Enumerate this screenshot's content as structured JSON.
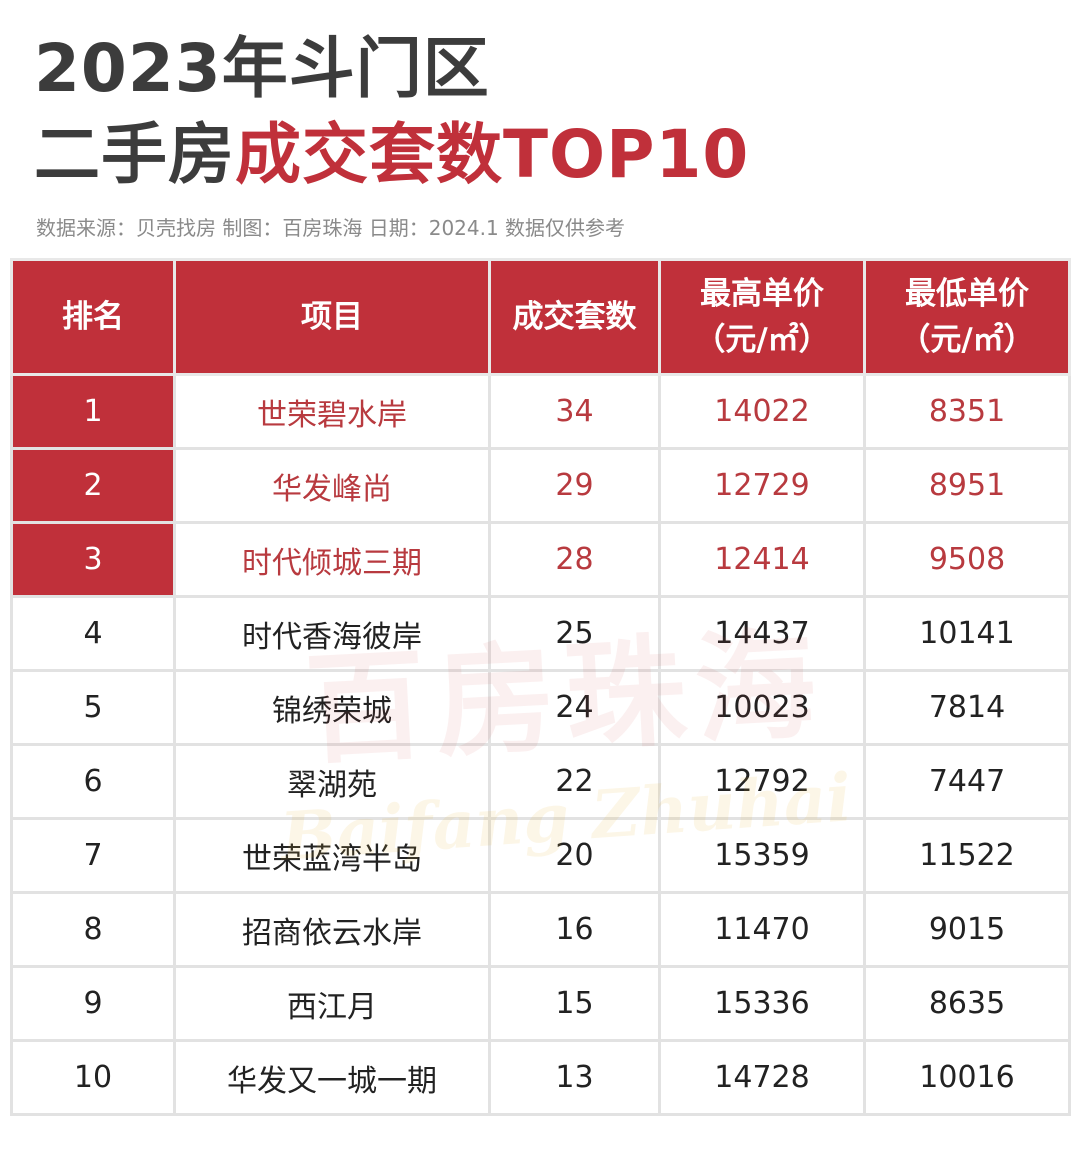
{
  "title": {
    "line1": "2023年斗门区",
    "line2_prefix": "二手房",
    "line2_accent": "成交套数TOP10"
  },
  "source_line": "数据来源：贝壳找房  制图：百房珠海  日期：2024.1  数据仅供参考",
  "watermark": {
    "cn": "百房珠海",
    "en": "Baifang Zhuhai"
  },
  "colors": {
    "accent": "#c0303a",
    "accent_text": "#b83a3f",
    "title_text": "#3c3c3c"
  },
  "table": {
    "headers": [
      {
        "line1": "排名",
        "line2": ""
      },
      {
        "line1": "项目",
        "line2": ""
      },
      {
        "line1": "成交套数",
        "line2": ""
      },
      {
        "line1": "最高单价",
        "line2": "（元/㎡）"
      },
      {
        "line1": "最低单价",
        "line2": "（元/㎡）"
      }
    ],
    "rows": [
      {
        "rank": "1",
        "project": "世荣碧水岸",
        "deals": "34",
        "max_price": "14022",
        "min_price": "8351"
      },
      {
        "rank": "2",
        "project": "华发峰尚",
        "deals": "29",
        "max_price": "12729",
        "min_price": "8951"
      },
      {
        "rank": "3",
        "project": "时代倾城三期",
        "deals": "28",
        "max_price": "12414",
        "min_price": "9508"
      },
      {
        "rank": "4",
        "project": "时代香海彼岸",
        "deals": "25",
        "max_price": "14437",
        "min_price": "10141"
      },
      {
        "rank": "5",
        "project": "锦绣荣城",
        "deals": "24",
        "max_price": "10023",
        "min_price": "7814"
      },
      {
        "rank": "6",
        "project": "翠湖苑",
        "deals": "22",
        "max_price": "12792",
        "min_price": "7447"
      },
      {
        "rank": "7",
        "project": "世荣蓝湾半岛",
        "deals": "20",
        "max_price": "15359",
        "min_price": "11522"
      },
      {
        "rank": "8",
        "project": "招商依云水岸",
        "deals": "16",
        "max_price": "11470",
        "min_price": "9015"
      },
      {
        "rank": "9",
        "project": "西江月",
        "deals": "15",
        "max_price": "15336",
        "min_price": "8635"
      },
      {
        "rank": "10",
        "project": "华发又一城一期",
        "deals": "13",
        "max_price": "14728",
        "min_price": "10016"
      }
    ]
  }
}
